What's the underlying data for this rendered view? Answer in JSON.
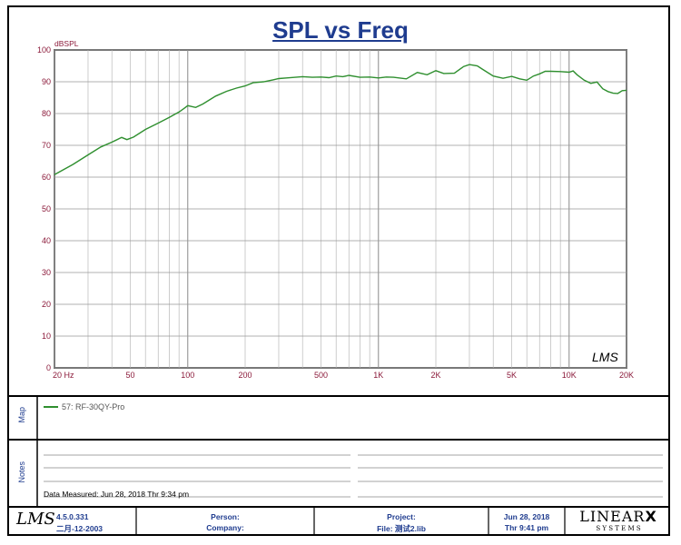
{
  "title": "SPL vs Freq",
  "chart_data": {
    "type": "line",
    "title": "SPL vs Freq",
    "ylabel": "dBSPL",
    "xlabel": "",
    "xscale": "log",
    "xlim": [
      20,
      20000
    ],
    "ylim": [
      0,
      100
    ],
    "yticks": [
      0,
      10,
      20,
      30,
      40,
      50,
      60,
      70,
      80,
      90,
      100
    ],
    "xtick_labels": [
      {
        "value": 20,
        "label": "20  Hz"
      },
      {
        "value": 50,
        "label": "50"
      },
      {
        "value": 100,
        "label": "100"
      },
      {
        "value": 200,
        "label": "200"
      },
      {
        "value": 500,
        "label": "500"
      },
      {
        "value": 1000,
        "label": "1K"
      },
      {
        "value": 2000,
        "label": "2K"
      },
      {
        "value": 5000,
        "label": "5K"
      },
      {
        "value": 10000,
        "label": "10K"
      },
      {
        "value": 20000,
        "label": "20K"
      }
    ],
    "grid": true,
    "series": [
      {
        "name": "57: RF-30QY-Pro",
        "color": "#2f8f2f",
        "x": [
          20,
          25,
          30,
          35,
          40,
          45,
          48,
          52,
          60,
          70,
          80,
          90,
          95,
          100,
          110,
          120,
          140,
          160,
          180,
          200,
          220,
          250,
          280,
          300,
          330,
          400,
          450,
          500,
          550,
          600,
          650,
          700,
          800,
          900,
          1000,
          1100,
          1200,
          1400,
          1600,
          1800,
          2000,
          2200,
          2500,
          2800,
          3000,
          3300,
          3500,
          4000,
          4500,
          5000,
          5500,
          6000,
          6500,
          7000,
          7500,
          8000,
          9000,
          10000,
          10500,
          11000,
          12000,
          13000,
          14000,
          15000,
          16000,
          17000,
          18000,
          19000,
          20000
        ],
        "y": [
          60.8,
          64,
          67,
          69.5,
          71,
          72.5,
          71.8,
          72.6,
          75,
          77,
          78.8,
          80.5,
          81.5,
          82.5,
          81.9,
          83,
          85.5,
          87,
          88,
          88.7,
          89.7,
          90,
          90.6,
          91,
          91.2,
          91.6,
          91.4,
          91.5,
          91.3,
          91.8,
          91.6,
          92,
          91.4,
          91.5,
          91.2,
          91.5,
          91.4,
          90.9,
          92.9,
          92.2,
          93.5,
          92.6,
          92.7,
          94.8,
          95.4,
          95,
          94,
          91.8,
          91.1,
          91.7,
          90.9,
          90.5,
          91.8,
          92.5,
          93.3,
          93.3,
          93.2,
          93,
          93.4,
          92.2,
          90.5,
          89.5,
          89.9,
          87.8,
          86.9,
          86.4,
          86.3,
          87.2,
          87.3
        ]
      }
    ],
    "legend_placement": "below-plot"
  },
  "map_label": "Map",
  "notes_label": "Notes",
  "legend": {
    "entry": "57: RF-30QY-Pro",
    "color": "#2f8f2f"
  },
  "data_measured": "Data Measured: Jun 28, 2018  Thr  9:34 pm",
  "plot_logo": "LMS",
  "footer": {
    "logo": "LMS",
    "version": "4.5.0.331",
    "date_cn": "二月-12-2003",
    "person": "Person:",
    "company": "Company:",
    "project": "Project:",
    "file": "File: 测试2.lib",
    "date": "Jun 28, 2018",
    "time": "Thr  9:41 pm",
    "brand_main": "LINEAR",
    "brand_x": "X",
    "brand_sub": "S Y S T E M S"
  },
  "colors": {
    "title": "#1f3c8f",
    "axis_label": "#8b1a3a",
    "curve": "#2f8f2f"
  }
}
